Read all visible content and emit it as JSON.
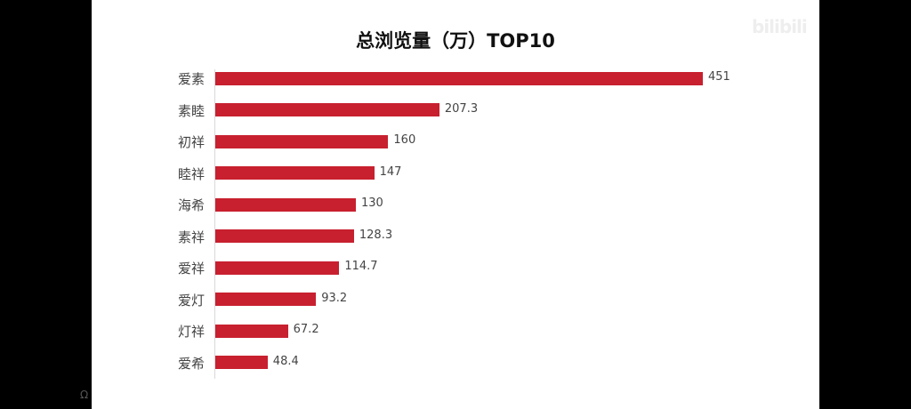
{
  "chart_data": {
    "type": "bar",
    "orientation": "horizontal",
    "title": "总浏览量（万）TOP10",
    "categories": [
      "爱素",
      "素睦",
      "初祥",
      "睦祥",
      "海希",
      "素祥",
      "爱祥",
      "爱灯",
      "灯祥",
      "爱希"
    ],
    "values": [
      451,
      207.3,
      160,
      147,
      130,
      128.3,
      114.7,
      93.2,
      67.2,
      48.4
    ],
    "xlabel": "",
    "ylabel": "",
    "xlim": [
      0,
      451
    ],
    "grid": false,
    "bar_color": "#c8202f"
  },
  "watermark": "bilibili"
}
